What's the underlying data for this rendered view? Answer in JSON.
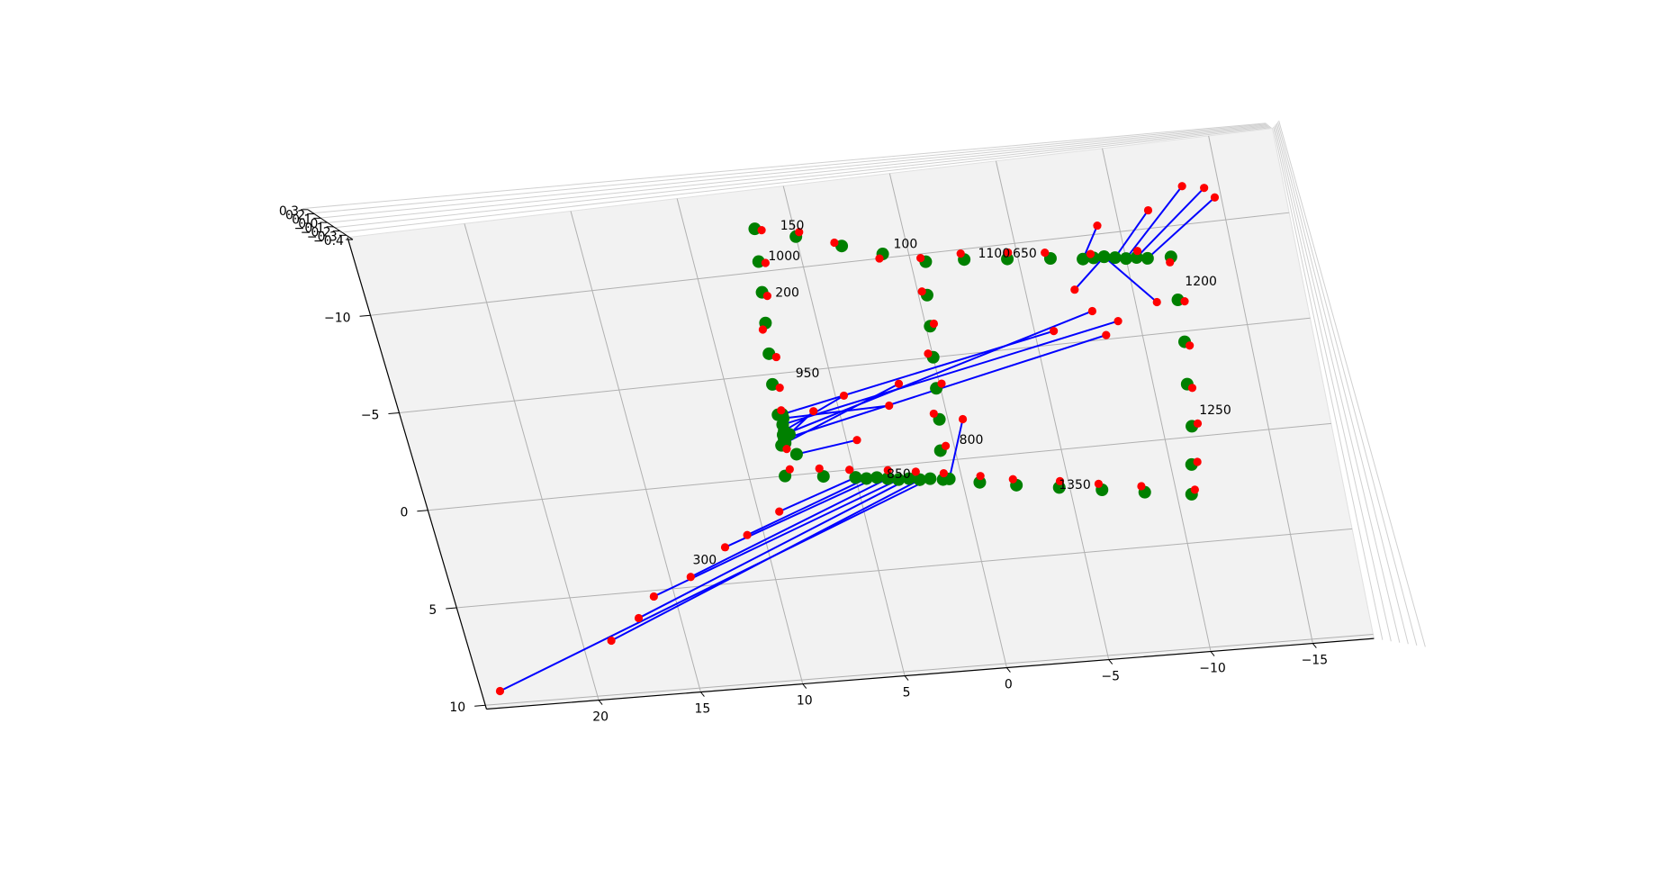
{
  "chart_data": {
    "type": "scatter3d",
    "xlim": [
      -18,
      25.5
    ],
    "xaxis_inverted": true,
    "ylim": [
      -14,
      10.2
    ],
    "zlim": [
      -0.4,
      0.3
    ],
    "xticks": [
      {
        "value": -15,
        "label": "−15"
      },
      {
        "value": -10,
        "label": "−10"
      },
      {
        "value": -5,
        "label": "−5"
      },
      0,
      5,
      10,
      15,
      20
    ],
    "yticks": [
      {
        "value": -10,
        "label": "−10"
      },
      {
        "value": -5,
        "label": "−5"
      },
      0,
      5,
      10
    ],
    "zticks": [
      {
        "value": -0.4,
        "label": "−0.4"
      },
      {
        "value": -0.3,
        "label": "−0.3"
      },
      {
        "value": -0.2,
        "label": "−0.2"
      },
      {
        "value": -0.1,
        "label": "−0.1"
      },
      {
        "value": 0,
        "label": "0.0"
      },
      0.1,
      0.2,
      0.3
    ],
    "grid": true,
    "connector_color": "#0000ff",
    "series": [
      {
        "color": "#008000",
        "x": [
          -0.7,
          1.2,
          3.0,
          5.0,
          6.8,
          7.0,
          7.2,
          7.4,
          7.6,
          7.8,
          7.9,
          8.1,
          8.3,
          6.5,
          5.0,
          3.5,
          2.0,
          0.9,
          0.7,
          0.4,
          0.2,
          0.0,
          -0.2,
          -0.4,
          -2.5,
          -4.5,
          -6.5,
          -8.5,
          -10.5,
          -12.1,
          -12.0,
          -11.9,
          -11.6,
          -11.4,
          -11.0,
          -10.7,
          -8.5,
          -6.5,
          -4.5,
          -2.5,
          -0.8,
          1.5,
          2.0,
          2.5,
          3.0,
          3.5,
          4.0,
          4.5,
          5.0,
          7.9,
          7.8,
          7.9,
          7.7,
          -9.0,
          -8.0,
          -9.5,
          -10.0,
          -10.5,
          -11.0,
          -9.0,
          0.6,
          7.5,
          7.6,
          7.8,
          7.7,
          7.9
        ],
        "y": [
          -9.6,
          -10.2,
          -10.8,
          -11.5,
          -12.1,
          -10.5,
          -9.0,
          -7.5,
          -6.0,
          -4.5,
          -3.0,
          -1.5,
          0.0,
          0.2,
          0.4,
          0.6,
          0.8,
          0.9,
          -0.5,
          -2.0,
          -3.5,
          -5.0,
          -6.5,
          -8.0,
          -9.5,
          -9.3,
          -9.1,
          -8.9,
          -8.7,
          -8.55,
          -6.5,
          -4.5,
          -2.5,
          -0.5,
          1.3,
          2.7,
          2.4,
          2.1,
          1.8,
          1.5,
          1.2,
          0.8,
          0.8,
          0.7,
          0.7,
          0.6,
          0.5,
          0.5,
          0.4,
          -2.0,
          -2.5,
          -1.8,
          -3.0,
          -8.9,
          -8.9,
          -8.8,
          -8.7,
          -8.7,
          -8.6,
          -8.9,
          0.9,
          -1.0,
          -2.0,
          -2.2,
          -2.8,
          -1.6
        ]
      },
      {
        "color": "#ff0000",
        "x": [
          -0.5,
          1.4,
          3.3,
          4.8,
          6.5,
          6.7,
          7.0,
          7.6,
          7.3,
          7.5,
          7.7,
          7.9,
          8.0,
          6.6,
          5.2,
          3.4,
          2.1,
          0.8,
          0.4,
          0.6,
          -0.1,
          0.2,
          -0.4,
          -0.2,
          -2.4,
          -4.6,
          -6.3,
          -8.4,
          -10.6,
          -12.0,
          -12.3,
          -12.1,
          -11.8,
          -11.7,
          -11.3,
          -10.9,
          -8.4,
          -6.4,
          -4.6,
          -2.4,
          -0.9,
          24.6,
          18.6,
          17.0,
          16.0,
          14.0,
          12.0,
          10.8,
          9.0,
          -7.9,
          -9.0,
          -8.3,
          -5.9,
          -7.3,
          -9.0,
          -11.5,
          -13.3,
          -14.3,
          -14.7,
          -11.0,
          -0.7,
          4.5,
          6.2,
          4.6,
          2.6,
          1.9
        ],
        "y": [
          -9.8,
          -10.0,
          -11.0,
          -11.7,
          -12.0,
          -10.4,
          -8.8,
          -7.2,
          -5.8,
          -4.3,
          -3.2,
          -1.3,
          -0.3,
          -0.2,
          0.0,
          0.2,
          0.4,
          0.6,
          -0.7,
          -2.3,
          -3.7,
          -5.2,
          -6.6,
          -8.2,
          -9.8,
          -9.6,
          -9.4,
          -9.1,
          -9.0,
          -8.3,
          -6.4,
          -4.3,
          -2.3,
          -0.6,
          1.2,
          2.5,
          2.1,
          1.8,
          1.5,
          1.2,
          0.9,
          9.35,
          7.3,
          6.3,
          5.3,
          4.5,
          3.2,
          2.7,
          1.7,
          -6.4,
          -5.8,
          -5.2,
          -5.65,
          -7.5,
          -10.4,
          -10.85,
          -11.8,
          -11.6,
          -11.1,
          -6.5,
          -1.9,
          -1.4,
          -3.0,
          -3.6,
          -2.9,
          -3.9
        ]
      }
    ],
    "annotations": [
      {
        "text": "150",
        "x": 5.6,
        "y": -12.1
      },
      {
        "text": "1000",
        "x": 6.5,
        "y": -10.7
      },
      {
        "text": "200",
        "x": 6.6,
        "y": -8.9
      },
      {
        "text": "950",
        "x": 6.6,
        "y": -4.9
      },
      {
        "text": "100",
        "x": 0.6,
        "y": -10.6
      },
      {
        "text": "1100",
        "x": -3.2,
        "y": -9.7
      },
      {
        "text": "650",
        "x": -4.8,
        "y": -9.5
      },
      {
        "text": "1200",
        "x": -12.5,
        "y": -7.3
      },
      {
        "text": "1250",
        "x": -11.9,
        "y": -1.2
      },
      {
        "text": "1350",
        "x": -4.5,
        "y": 1.7
      },
      {
        "text": "800",
        "x": -0.3,
        "y": -0.9
      },
      {
        "text": "850",
        "x": 3.5,
        "y": 0.4
      },
      {
        "text": "300",
        "x": 13.7,
        "y": 3.7
      }
    ]
  }
}
